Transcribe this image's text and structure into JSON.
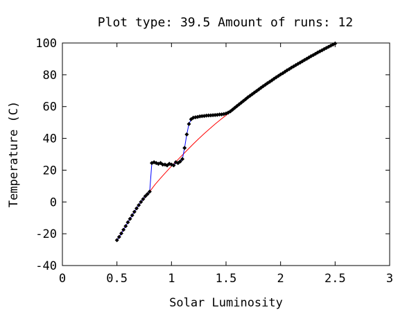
{
  "chart_data": {
    "type": "line",
    "title": "Plot type: 39.5 Amount of runs: 12",
    "xlabel": "Solar Luminosity",
    "ylabel": "Temperature (C)",
    "xlim": [
      0,
      3
    ],
    "ylim": [
      -40,
      100
    ],
    "xticks": [
      0,
      0.5,
      1,
      1.5,
      2,
      2.5,
      3
    ],
    "xtick_labels": [
      "0",
      "0.5",
      "1",
      "1.5",
      "2",
      "2.5",
      "3"
    ],
    "yticks": [
      -40,
      -20,
      0,
      20,
      40,
      60,
      80,
      100
    ],
    "ytick_labels": [
      "-40",
      "-20",
      "0",
      "20",
      "40",
      "60",
      "80",
      "100"
    ],
    "grid": false,
    "colors": {
      "reference_line": "#ff0000",
      "data_line": "#0000ff",
      "marker": "#000000",
      "axes": "#000000"
    },
    "series": [
      {
        "style": "thin red curve",
        "x": [
          0.5,
          0.55,
          0.6,
          0.65,
          0.7,
          0.75,
          0.8,
          0.85,
          0.9,
          0.95,
          1.0,
          1.05,
          1.1,
          1.15,
          1.2,
          1.25,
          1.3,
          1.35,
          1.4,
          1.45,
          1.5,
          1.55,
          1.6,
          1.7,
          1.8,
          1.9,
          2.0,
          2.1,
          2.2,
          2.3,
          2.4,
          2.5
        ],
        "y": [
          -24,
          -18.5,
          -12.8,
          -7.2,
          -2,
          2.5,
          6.5,
          11,
          15,
          18.8,
          22.5,
          26,
          29.5,
          33,
          36.5,
          39.8,
          43,
          46,
          49,
          51.8,
          54.5,
          57.2,
          60,
          65.5,
          70.5,
          75.5,
          80,
          84.5,
          88.5,
          92.5,
          96,
          99
        ]
      },
      {
        "style": "blue line with black diamond markers",
        "x": [
          0.5,
          0.52,
          0.54,
          0.56,
          0.58,
          0.6,
          0.62,
          0.64,
          0.66,
          0.68,
          0.7,
          0.72,
          0.74,
          0.76,
          0.78,
          0.8,
          0.82,
          0.84,
          0.86,
          0.88,
          0.9,
          0.92,
          0.94,
          0.96,
          0.98,
          1.0,
          1.02,
          1.04,
          1.06,
          1.08,
          1.1,
          1.12,
          1.14,
          1.16,
          1.18,
          1.2,
          1.22,
          1.24,
          1.26,
          1.28,
          1.3,
          1.32,
          1.34,
          1.36,
          1.38,
          1.4,
          1.42,
          1.44,
          1.46,
          1.48,
          1.5,
          1.52,
          1.54,
          1.56,
          1.58,
          1.6,
          1.62,
          1.64,
          1.66,
          1.68,
          1.7,
          1.72,
          1.74,
          1.76,
          1.78,
          1.8,
          1.82,
          1.84,
          1.86,
          1.88,
          1.9,
          1.92,
          1.94,
          1.96,
          1.98,
          2.0,
          2.02,
          2.04,
          2.06,
          2.08,
          2.1,
          2.12,
          2.14,
          2.16,
          2.18,
          2.2,
          2.22,
          2.24,
          2.26,
          2.28,
          2.3,
          2.32,
          2.34,
          2.36,
          2.38,
          2.4,
          2.42,
          2.44,
          2.46,
          2.48,
          2.5
        ],
        "y": [
          -24,
          -22,
          -19.8,
          -17.5,
          -15.2,
          -12.8,
          -10.6,
          -8.4,
          -6.2,
          -4,
          -2,
          0,
          1.8,
          3.6,
          5,
          6.5,
          24.5,
          25,
          24.5,
          24,
          24.5,
          23.5,
          23.5,
          23,
          24,
          23.5,
          23,
          25,
          24.5,
          25.5,
          27,
          34,
          42.5,
          49,
          52,
          53,
          53.3,
          53.5,
          53.8,
          54,
          54.1,
          54.3,
          54.4,
          54.5,
          54.6,
          54.7,
          54.8,
          55,
          55.1,
          55.3,
          55.6,
          56.2,
          57,
          58.1,
          59.2,
          60.3,
          61.4,
          62.5,
          63.6,
          64.7,
          65.8,
          66.8,
          67.8,
          68.8,
          69.8,
          70.8,
          71.8,
          72.8,
          73.7,
          74.7,
          75.6,
          76.5,
          77.5,
          78.4,
          79.3,
          80.2,
          81,
          81.9,
          82.8,
          83.6,
          84.5,
          85.3,
          86.1,
          86.9,
          87.7,
          88.5,
          89.3,
          90.1,
          90.9,
          91.7,
          92.4,
          93.2,
          94,
          94.7,
          95.4,
          96.2,
          96.9,
          97.6,
          98.3,
          99,
          99.7
        ]
      }
    ]
  }
}
